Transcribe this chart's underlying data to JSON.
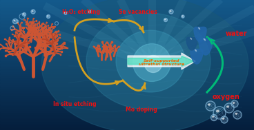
{
  "labels": {
    "in_situ_etching": "In situ etching",
    "mo_doping": "Mo doping",
    "self_supported": "Self-supported\nultrathin structure",
    "h2o2_etching": "H₂O₂ etching",
    "se_vacancies": "Se vacancies",
    "oxygen": "oxygen",
    "water": "water"
  },
  "label_colors": {
    "in_situ_etching": "#ee1111",
    "mo_doping": "#ee1111",
    "self_supported": "#ee6600",
    "h2o2_etching": "#ee1111",
    "se_vacancies": "#ee1111",
    "oxygen": "#ee1111",
    "water": "#ee1111"
  },
  "coral_color": "#cc5533",
  "arrow_gold": "#d4a020",
  "arrow_green": "#00bb77",
  "water_color": "#2266aa",
  "bubble_edge": "#99ccee"
}
